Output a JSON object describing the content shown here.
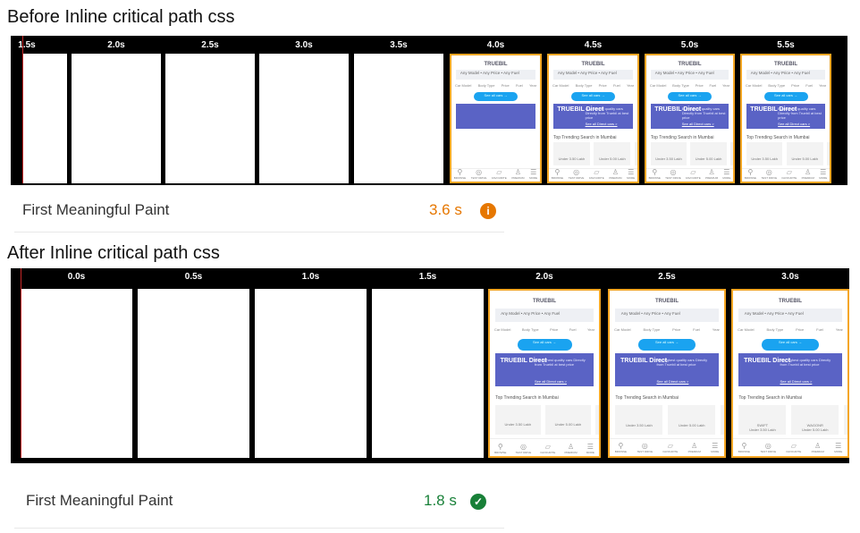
{
  "before": {
    "title": "Before Inline critical path css",
    "timestamps": [
      "1.5s",
      "2.0s",
      "2.5s",
      "3.0s",
      "3.5s",
      "4.0s",
      "4.5s",
      "5.0s",
      "5.5s"
    ],
    "frames": [
      "blank",
      "blank",
      "blank",
      "blank",
      "blank",
      "partial",
      "full",
      "full",
      "full"
    ],
    "metric": {
      "label": "First Meaningful Paint",
      "value": "3.6 s",
      "status": "average",
      "color": "#e67700",
      "icon": "info-icon"
    }
  },
  "after": {
    "title": "After Inline critical path css",
    "timestamps": [
      "0.0s",
      "0.5s",
      "1.0s",
      "1.5s",
      "2.0s",
      "2.5s",
      "3.0s"
    ],
    "frames": [
      "blank",
      "blank",
      "blank",
      "blank",
      "full",
      "full",
      "cars"
    ],
    "metric": {
      "label": "First Meaningful Paint",
      "value": "1.8 s",
      "status": "pass",
      "color": "#188038",
      "icon": "check-circle-icon"
    }
  },
  "thumbnail": {
    "logo": "TRUEBIL",
    "search": "Any Model • Any Price • Any Fuel",
    "filters": [
      "Car Model",
      "Body Type",
      "Price",
      "Fuel",
      "Year"
    ],
    "cta": "See all cars →",
    "banner_title": "TRUEBIL Direct",
    "banner_text": "Buy highest quality cars Directly from Truebil at best price",
    "banner_link": "See all Direct cars >",
    "trending": "Top Trending Search in Mumbai",
    "cards": [
      "Under 3.50 Lakh",
      "Under 5.00 Lakh",
      "Under 6"
    ],
    "car_brands": [
      "SWIFT",
      "WAGONR",
      "i10"
    ],
    "nav": [
      "BROWSE",
      "TEST DRIVE",
      "FAVOURITE",
      "PREMIUM",
      "MORE"
    ]
  },
  "colors": {
    "highlight": "#f5a623",
    "strip": "#000000",
    "banner": "#5a63c5",
    "cta": "#1aa3f0"
  }
}
